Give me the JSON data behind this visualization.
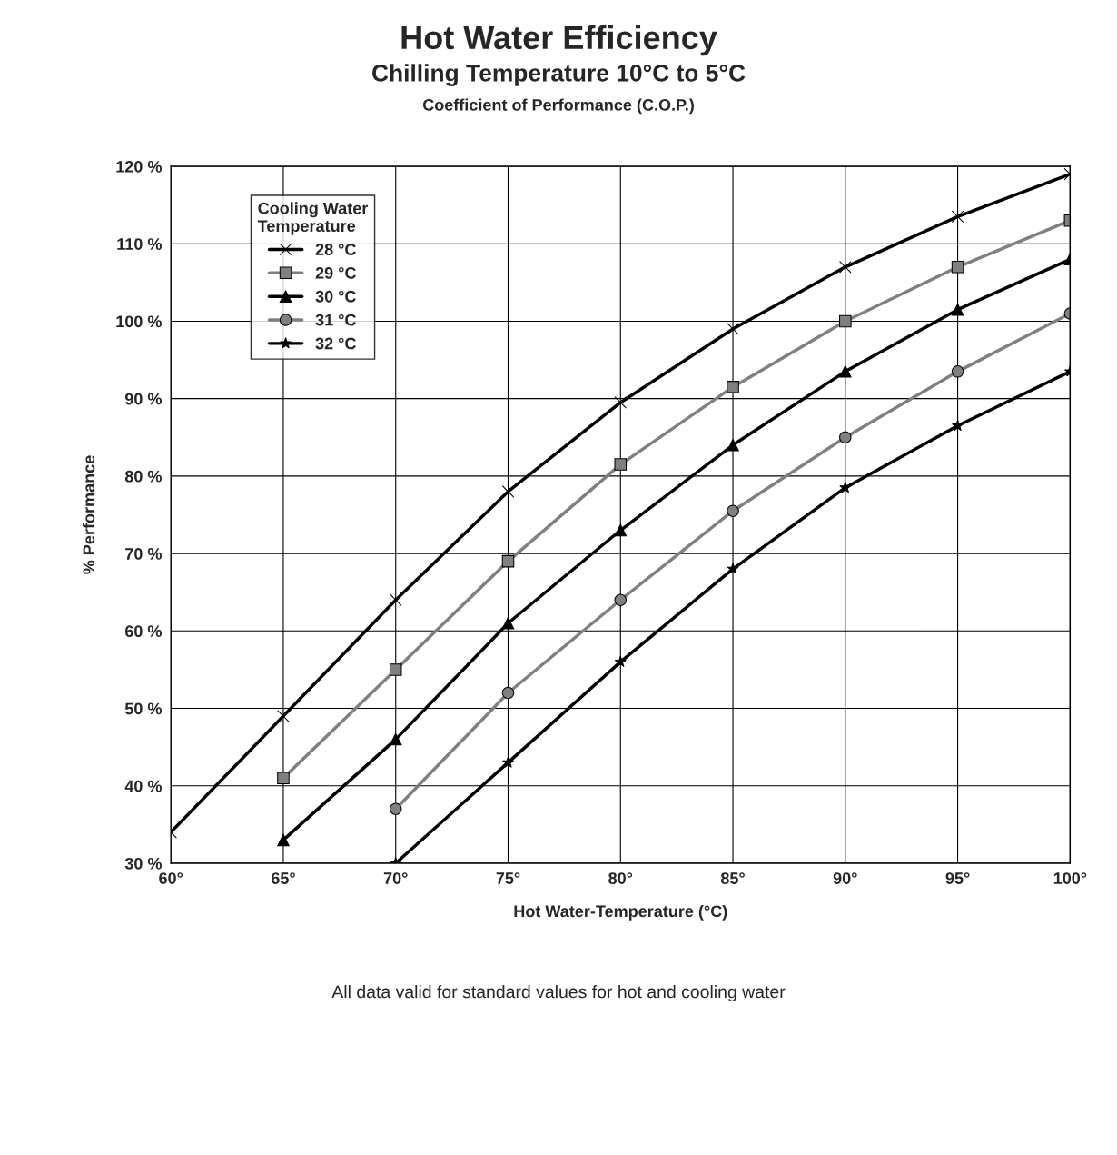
{
  "chart_data": {
    "type": "line",
    "title": "Hot Water Efficiency",
    "subtitle": "Chilling Temperature 10°C to 5°C\nCoefficient of Performance (C.O.P.)",
    "xlabel": "Hot Water-Temperature (°C)",
    "ylabel": "% Performance",
    "legend_title": "Cooling Water\nTemperature",
    "x": [
      60,
      65,
      70,
      75,
      80,
      85,
      90,
      95,
      100
    ],
    "series": [
      {
        "name": "28 °C",
        "color": "#000000",
        "marker": "cross",
        "values": [
          34,
          49,
          64,
          78,
          89.5,
          99,
          107,
          113.5,
          119
        ]
      },
      {
        "name": "29 °C",
        "color": "#808080",
        "marker": "square",
        "values": [
          null,
          41,
          55,
          69,
          81.5,
          91.5,
          100,
          107,
          113
        ]
      },
      {
        "name": "30 °C",
        "color": "#000000",
        "marker": "triangle",
        "values": [
          null,
          33,
          46,
          61,
          73,
          84,
          93.5,
          101.5,
          108
        ]
      },
      {
        "name": "31 °C",
        "color": "#808080",
        "marker": "circle",
        "values": [
          null,
          null,
          37,
          52,
          64,
          75.5,
          85,
          93.5,
          101
        ]
      },
      {
        "name": "32 °C",
        "color": "#000000",
        "marker": "star",
        "values": [
          null,
          null,
          30,
          43,
          56,
          68,
          78.5,
          86.5,
          93.5
        ]
      }
    ],
    "xlim": [
      60,
      100
    ],
    "xticks": [
      {
        "value": 60,
        "label": "60°"
      },
      {
        "value": 65,
        "label": "65°"
      },
      {
        "value": 70,
        "label": "70°"
      },
      {
        "value": 75,
        "label": "75°"
      },
      {
        "value": 80,
        "label": "80°"
      },
      {
        "value": 85,
        "label": "85°"
      },
      {
        "value": 90,
        "label": "90°"
      },
      {
        "value": 95,
        "label": "95°"
      },
      {
        "value": 100,
        "label": "100°"
      }
    ],
    "ylim": [
      30,
      120
    ],
    "yticks": [
      {
        "value": 30,
        "label": "30 %"
      },
      {
        "value": 40,
        "label": "40 %"
      },
      {
        "value": 50,
        "label": "50 %"
      },
      {
        "value": 60,
        "label": "60 %"
      },
      {
        "value": 70,
        "label": "70 %"
      },
      {
        "value": 80,
        "label": "80 %"
      },
      {
        "value": 90,
        "label": "90 %"
      },
      {
        "value": 100,
        "label": "100 %"
      },
      {
        "value": 110,
        "label": "110 %"
      },
      {
        "value": 120,
        "label": "120 %"
      }
    ],
    "grid": true,
    "legend": "top left",
    "annotations": [
      "All data valid for standard values for hot and cooling water"
    ]
  }
}
